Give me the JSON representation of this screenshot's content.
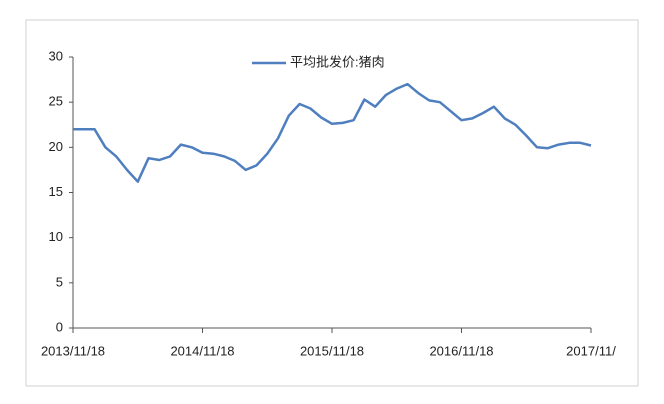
{
  "chart_data": {
    "type": "line",
    "x": [
      "2013/11",
      "2013/12",
      "2014/01",
      "2014/02",
      "2014/03",
      "2014/04",
      "2014/05",
      "2014/06",
      "2014/07",
      "2014/08",
      "2014/09",
      "2014/10",
      "2014/11",
      "2014/12",
      "2015/01",
      "2015/02",
      "2015/03",
      "2015/04",
      "2015/05",
      "2015/06",
      "2015/07",
      "2015/08",
      "2015/09",
      "2015/10",
      "2015/11",
      "2015/12",
      "2016/01",
      "2016/02",
      "2016/03",
      "2016/04",
      "2016/05",
      "2016/06",
      "2016/07",
      "2016/08",
      "2016/09",
      "2016/10",
      "2016/11",
      "2016/12",
      "2017/01",
      "2017/02",
      "2017/03",
      "2017/04",
      "2017/05",
      "2017/06",
      "2017/07",
      "2017/08",
      "2017/09",
      "2017/10",
      "2017/11"
    ],
    "series": [
      {
        "name": "平均批发价:猪肉",
        "color": "#4f7fbf",
        "values": [
          22,
          22,
          22,
          20,
          19,
          17.5,
          16.2,
          18.8,
          18.6,
          19,
          20.3,
          20,
          19.4,
          19.3,
          19,
          18.5,
          17.5,
          18,
          19.3,
          21,
          23.5,
          24.8,
          24.3,
          23.3,
          22.6,
          22.7,
          23,
          25.3,
          24.5,
          25.8,
          26.5,
          27,
          26,
          25.2,
          25,
          24,
          23,
          23.2,
          23.8,
          24.5,
          23.2,
          22.5,
          21.3,
          20,
          19.9,
          20.3,
          20.5,
          20.5,
          20.2
        ]
      }
    ],
    "xlim": [
      "2013/11",
      "2017/11"
    ],
    "xticks": [
      {
        "value": "2013/11",
        "label": "2013/11/18"
      },
      {
        "value": "2014/11",
        "label": "2014/11/18"
      },
      {
        "value": "2015/11",
        "label": "2015/11/18"
      },
      {
        "value": "2016/11",
        "label": "2016/11/18"
      },
      {
        "value": "2017/11",
        "label": "2017/11/"
      }
    ],
    "ylim": [
      0,
      30
    ],
    "yticks": [
      0,
      5,
      10,
      15,
      20,
      25,
      30
    ],
    "legend": "top"
  }
}
